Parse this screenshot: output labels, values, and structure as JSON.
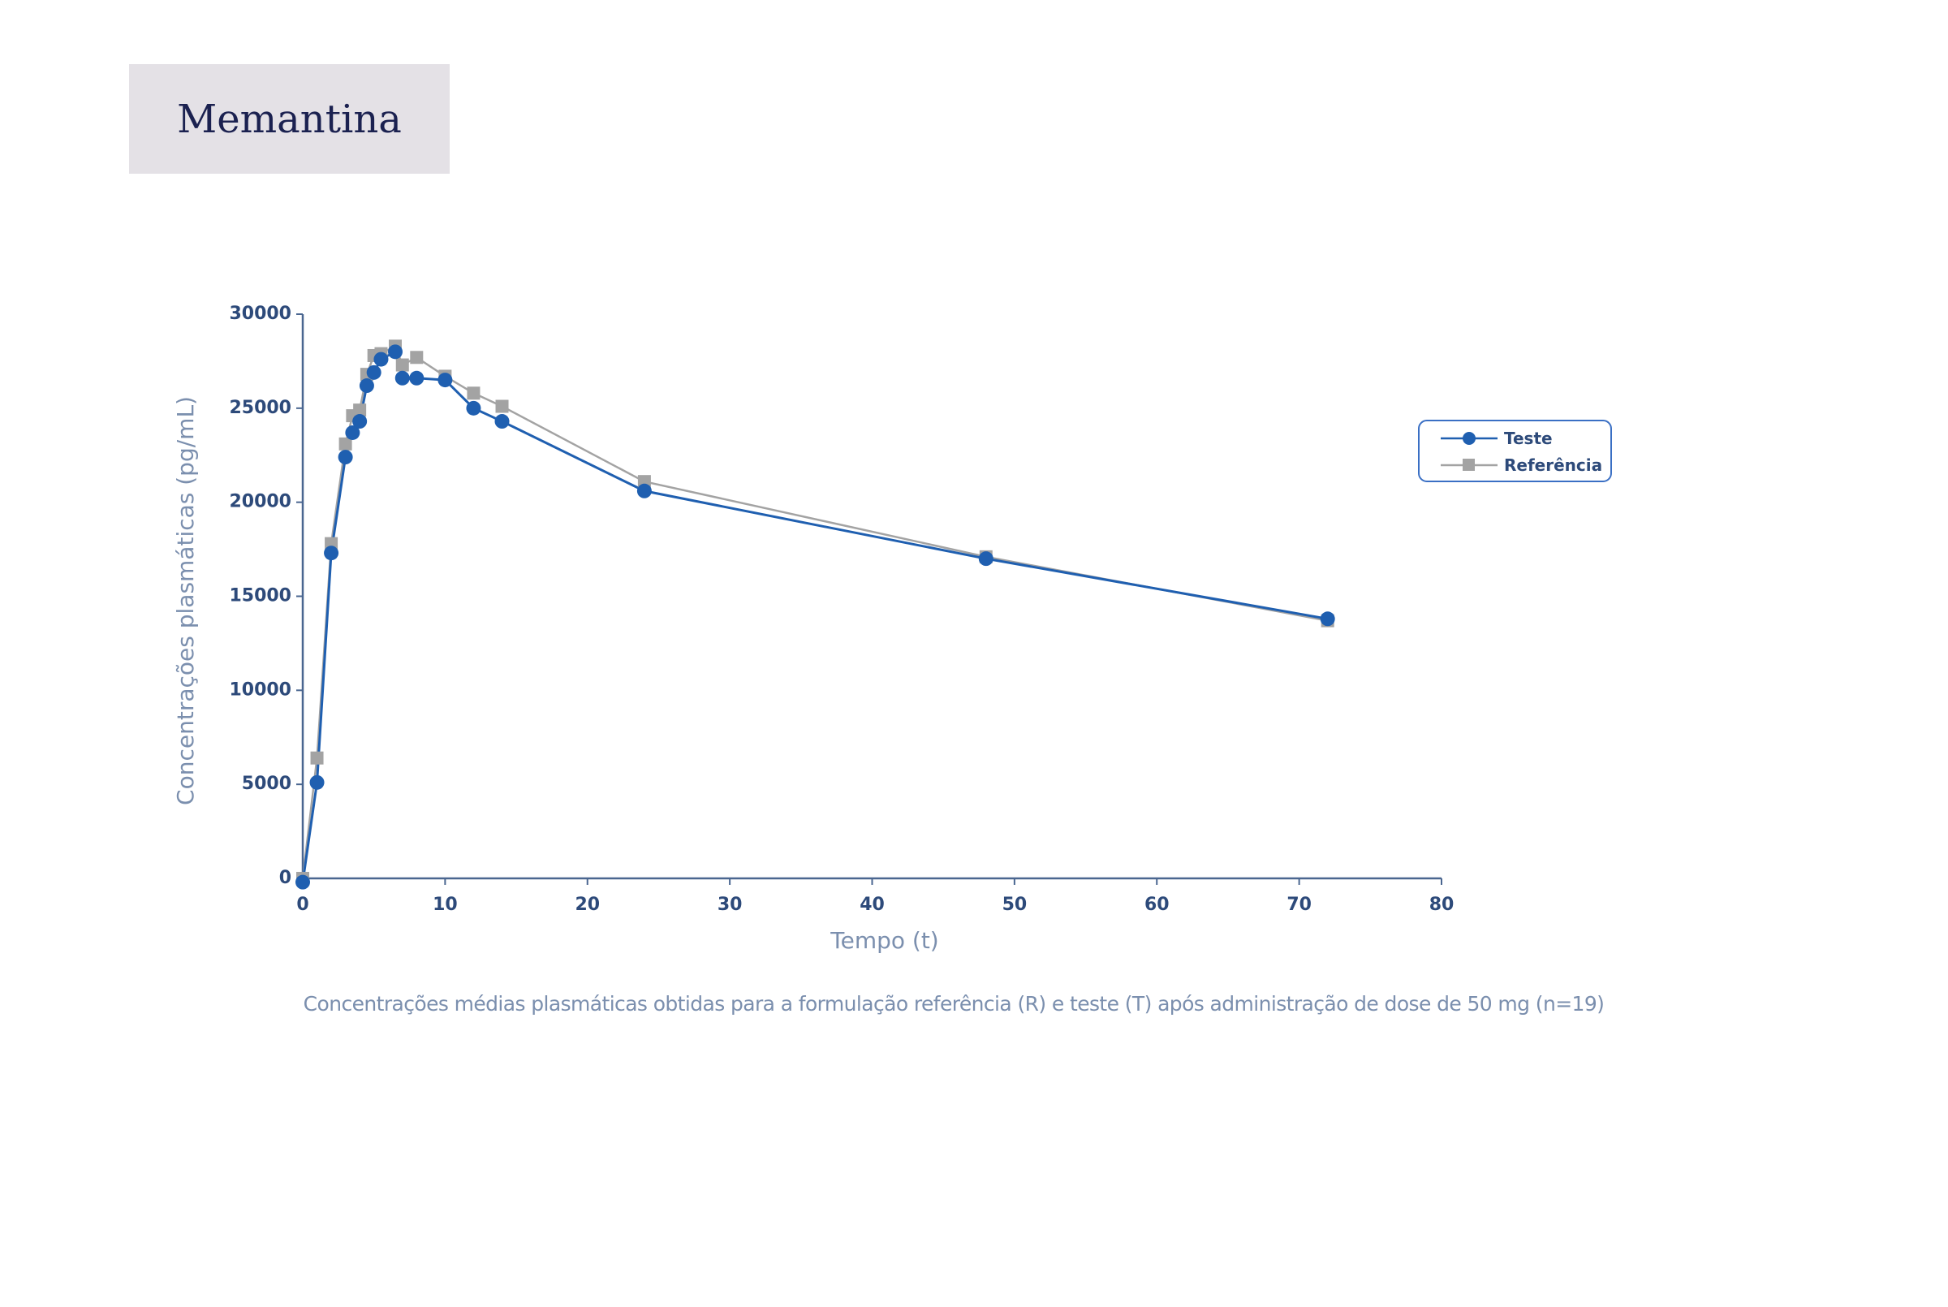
{
  "header": {
    "title": "Memantina"
  },
  "caption": "Concentrações médias plasmáticas obtidas para a formulação referência (R)  e teste (T) após administração de dose de 50 mg (n=19)",
  "chart_data": {
    "type": "line",
    "title": "",
    "xlabel": "Tempo (t)",
    "ylabel": "Concentrações plasmáticas (pg/mL)",
    "xlim": [
      0,
      80
    ],
    "ylim": [
      0,
      30000
    ],
    "xticks": [
      0,
      10,
      20,
      30,
      40,
      50,
      60,
      70,
      80
    ],
    "yticks": [
      0,
      5000,
      10000,
      15000,
      20000,
      25000,
      30000
    ],
    "grid": false,
    "legend_position": "right",
    "series": [
      {
        "name": "Teste",
        "color": "#1f5fb0",
        "marker": "circle",
        "x": [
          0,
          1,
          2,
          3,
          3.5,
          4,
          4.5,
          5,
          5.5,
          6.5,
          7,
          8,
          10,
          12,
          14,
          24,
          48,
          72
        ],
        "y": [
          -200,
          5100,
          17300,
          22400,
          23700,
          24300,
          26200,
          26900,
          27600,
          28000,
          26600,
          26600,
          26500,
          25000,
          24300,
          20600,
          17000,
          13800
        ]
      },
      {
        "name": "Referência",
        "color": "#a3a3a3",
        "marker": "square",
        "x": [
          0,
          1,
          2,
          3,
          3.5,
          4,
          4.5,
          5,
          5.5,
          6.5,
          7,
          8,
          10,
          12,
          14,
          24,
          48,
          72
        ],
        "y": [
          0,
          6400,
          17800,
          23100,
          24600,
          24900,
          26800,
          27800,
          27900,
          28300,
          27300,
          27700,
          26700,
          25800,
          25100,
          21100,
          17100,
          13700
        ]
      }
    ]
  }
}
